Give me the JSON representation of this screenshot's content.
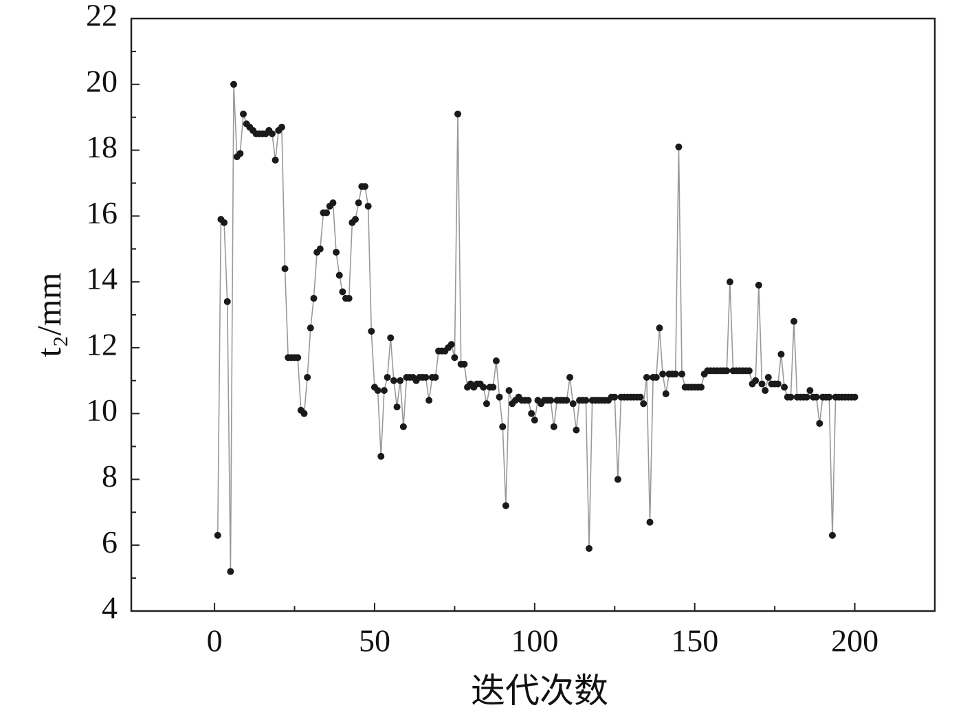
{
  "chart_data": {
    "type": "line",
    "x_label": "迭代次数",
    "y_label": "t₂/mm",
    "x": [
      1,
      2,
      3,
      4,
      5,
      6,
      7,
      8,
      9,
      10,
      11,
      12,
      13,
      14,
      15,
      16,
      17,
      18,
      19,
      20,
      21,
      22,
      23,
      24,
      25,
      26,
      27,
      28,
      29,
      30,
      31,
      32,
      33,
      34,
      35,
      36,
      37,
      38,
      39,
      40,
      41,
      42,
      43,
      44,
      45,
      46,
      47,
      48,
      49,
      50,
      51,
      52,
      53,
      54,
      55,
      56,
      57,
      58,
      59,
      60,
      61,
      62,
      63,
      64,
      65,
      66,
      67,
      68,
      69,
      70,
      71,
      72,
      73,
      74,
      75,
      76,
      77,
      78,
      79,
      80,
      81,
      82,
      83,
      84,
      85,
      86,
      87,
      88,
      89,
      90,
      91,
      92,
      93,
      94,
      95,
      96,
      97,
      98,
      99,
      100,
      101,
      102,
      103,
      104,
      105,
      106,
      107,
      108,
      109,
      110,
      111,
      112,
      113,
      114,
      115,
      116,
      117,
      118,
      119,
      120,
      121,
      122,
      123,
      124,
      125,
      126,
      127,
      128,
      129,
      130,
      131,
      132,
      133,
      134,
      135,
      136,
      137,
      138,
      139,
      140,
      141,
      142,
      143,
      144,
      145,
      146,
      147,
      148,
      149,
      150,
      151,
      152,
      153,
      154,
      155,
      156,
      157,
      158,
      159,
      160,
      161,
      162,
      163,
      164,
      165,
      166,
      167,
      168,
      169,
      170,
      171,
      172,
      173,
      174,
      175,
      176,
      177,
      178,
      179,
      180,
      181,
      182,
      183,
      184,
      185,
      186,
      187,
      188,
      189,
      190,
      191,
      192,
      193,
      194,
      195,
      196,
      197,
      198,
      199,
      200
    ],
    "values": [
      6.3,
      15.9,
      15.8,
      13.4,
      5.2,
      20.0,
      17.8,
      17.9,
      19.1,
      18.8,
      18.7,
      18.6,
      18.5,
      18.5,
      18.5,
      18.5,
      18.6,
      18.5,
      17.7,
      18.6,
      18.7,
      14.4,
      11.7,
      11.7,
      11.7,
      11.7,
      10.1,
      10.0,
      11.1,
      12.6,
      13.5,
      14.9,
      15.0,
      16.1,
      16.1,
      16.3,
      16.4,
      14.9,
      14.2,
      13.7,
      13.5,
      13.5,
      15.8,
      15.9,
      16.4,
      16.9,
      16.9,
      16.3,
      12.5,
      10.8,
      10.7,
      8.7,
      10.7,
      11.1,
      12.3,
      11.0,
      10.2,
      11.0,
      9.6,
      11.1,
      11.1,
      11.1,
      11.0,
      11.1,
      11.1,
      11.1,
      10.4,
      11.1,
      11.1,
      11.9,
      11.9,
      11.9,
      12.0,
      12.1,
      11.7,
      19.1,
      11.5,
      11.5,
      10.8,
      10.9,
      10.8,
      10.9,
      10.9,
      10.8,
      10.3,
      10.8,
      10.8,
      11.6,
      10.5,
      9.6,
      7.2,
      10.7,
      10.3,
      10.4,
      10.5,
      10.4,
      10.4,
      10.4,
      10.0,
      9.8,
      10.4,
      10.3,
      10.4,
      10.4,
      10.4,
      9.6,
      10.4,
      10.4,
      10.4,
      10.4,
      11.1,
      10.3,
      9.5,
      10.4,
      10.4,
      10.4,
      5.9,
      10.4,
      10.4,
      10.4,
      10.4,
      10.4,
      10.4,
      10.5,
      10.5,
      8.0,
      10.5,
      10.5,
      10.5,
      10.5,
      10.5,
      10.5,
      10.5,
      10.3,
      11.1,
      6.7,
      11.1,
      11.1,
      12.6,
      11.2,
      10.6,
      11.2,
      11.2,
      11.2,
      18.1,
      11.2,
      10.8,
      10.8,
      10.8,
      10.8,
      10.8,
      10.8,
      11.2,
      11.3,
      11.3,
      11.3,
      11.3,
      11.3,
      11.3,
      11.3,
      14.0,
      11.3,
      11.3,
      11.3,
      11.3,
      11.3,
      11.3,
      10.9,
      11.0,
      13.9,
      10.9,
      10.7,
      11.1,
      10.9,
      10.9,
      10.9,
      11.8,
      10.8,
      10.5,
      10.5,
      12.8,
      10.5,
      10.5,
      10.5,
      10.5,
      10.7,
      10.5,
      10.5,
      9.7,
      10.5,
      10.5,
      10.5,
      6.3,
      10.5,
      10.5,
      10.5,
      10.5,
      10.5,
      10.5,
      10.5
    ],
    "line_color": "#999999",
    "marker_color": "#1a1a1a",
    "xlim": [
      -26,
      225
    ],
    "ylim": [
      4,
      22
    ],
    "xticks": [
      0,
      50,
      100,
      150,
      200
    ],
    "xticks_minor": [
      25,
      75,
      125,
      175
    ],
    "yticks": [
      4,
      6,
      8,
      10,
      12,
      14,
      16,
      18,
      20,
      22
    ],
    "yticks_minor": [
      5,
      7,
      9,
      11,
      13,
      15,
      17,
      19,
      21
    ]
  }
}
